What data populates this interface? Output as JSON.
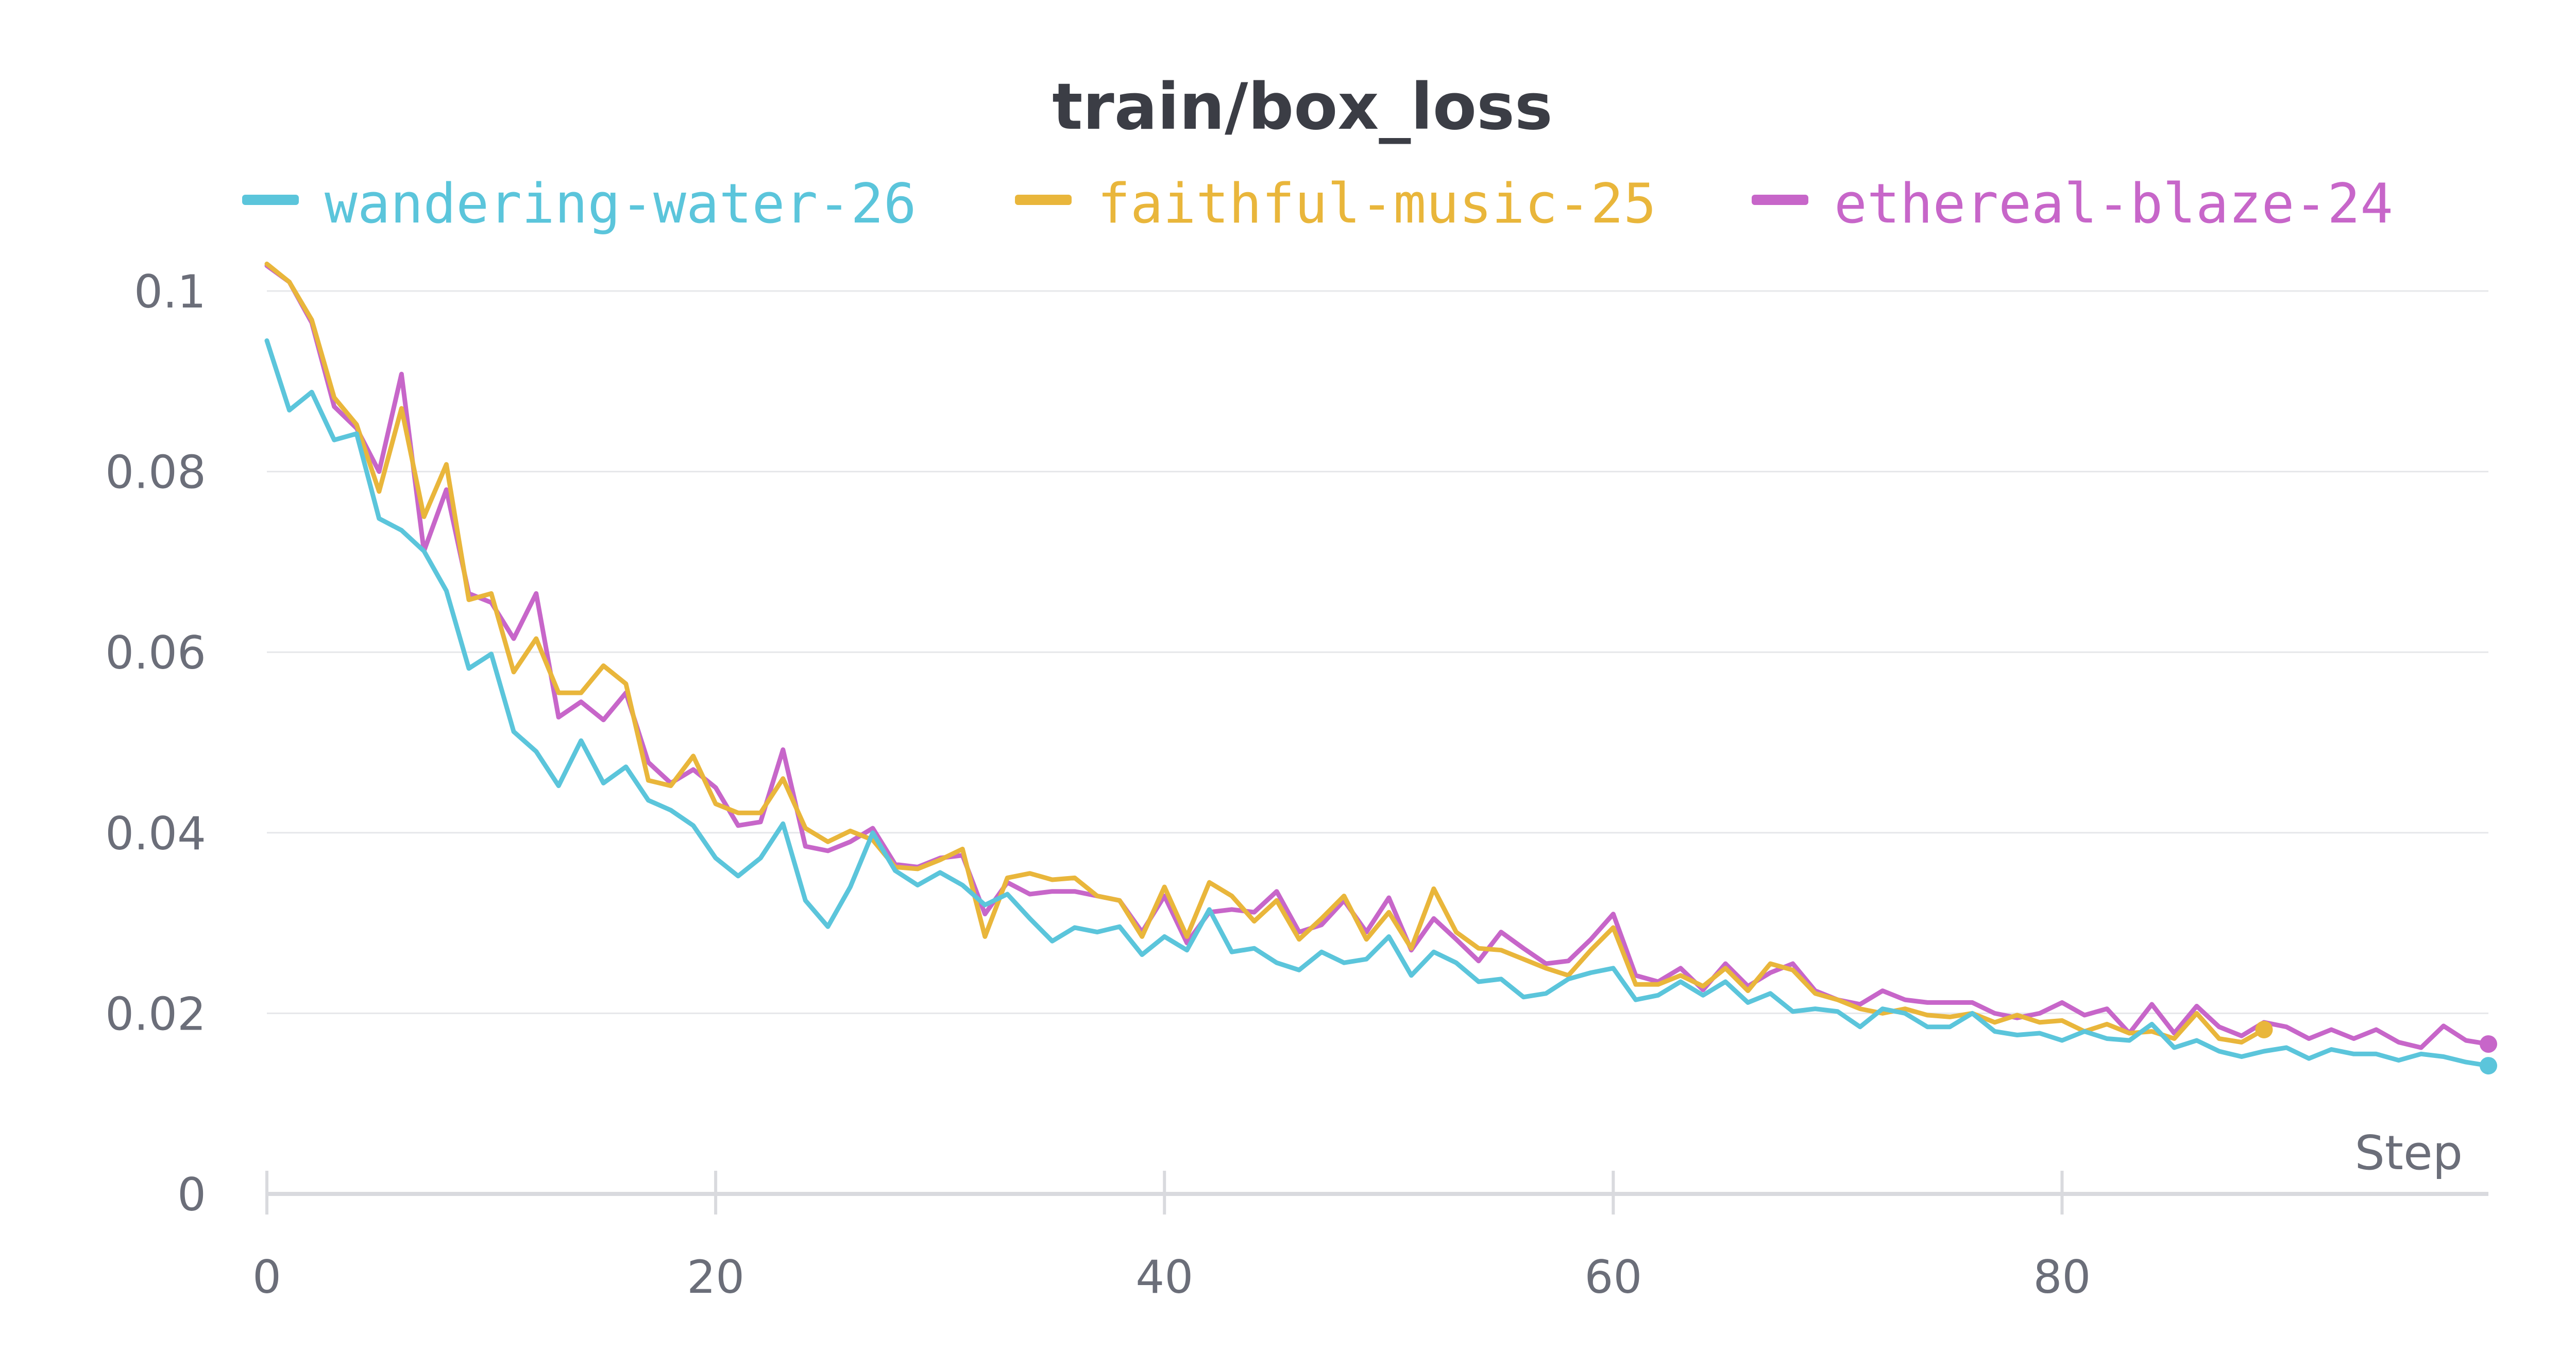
{
  "chart_data": {
    "type": "line",
    "title": "train/box_loss",
    "xlabel": "Step",
    "ylabel": "",
    "xlim": [
      0,
      99
    ],
    "ylim": [
      0,
      0.1
    ],
    "xticks": [
      0,
      20,
      40,
      60,
      80
    ],
    "yticks": [
      0,
      0.02,
      0.04,
      0.06,
      0.08,
      0.1
    ],
    "xtick_labels": [
      "0",
      "20",
      "40",
      "60",
      "80"
    ],
    "ytick_labels": [
      "0",
      "0.02",
      "0.04",
      "0.06",
      "0.08",
      "0.1"
    ],
    "grid": true,
    "legend_position": "top",
    "series": [
      {
        "name": "wandering-water-26",
        "color": "#5bc5db",
        "x_start": 0,
        "values": [
          0.0945,
          0.0868,
          0.0888,
          0.0835,
          0.0842,
          0.0748,
          0.0735,
          0.0712,
          0.0668,
          0.0582,
          0.0598,
          0.0512,
          0.049,
          0.0452,
          0.0502,
          0.0455,
          0.0473,
          0.0436,
          0.0425,
          0.0408,
          0.0372,
          0.0352,
          0.0372,
          0.041,
          0.0325,
          0.0296,
          0.034,
          0.04,
          0.0358,
          0.0342,
          0.0356,
          0.0342,
          0.032,
          0.0332,
          0.0305,
          0.028,
          0.0295,
          0.029,
          0.0296,
          0.0265,
          0.0285,
          0.027,
          0.0315,
          0.0268,
          0.0272,
          0.0256,
          0.0248,
          0.0268,
          0.0256,
          0.026,
          0.0285,
          0.0242,
          0.0268,
          0.0256,
          0.0235,
          0.0238,
          0.0218,
          0.0222,
          0.0238,
          0.0245,
          0.025,
          0.0215,
          0.022,
          0.0235,
          0.022,
          0.0235,
          0.0212,
          0.0222,
          0.0202,
          0.0205,
          0.0202,
          0.0185,
          0.0205,
          0.02,
          0.0185,
          0.0185,
          0.02,
          0.018,
          0.0176,
          0.0178,
          0.017,
          0.018,
          0.0172,
          0.017,
          0.0188,
          0.0162,
          0.017,
          0.0158,
          0.0152,
          0.0158,
          0.0162,
          0.015,
          0.016,
          0.0155,
          0.0155,
          0.0148,
          0.0155,
          0.0152,
          0.0146,
          0.0142
        ]
      },
      {
        "name": "faithful-music-25",
        "color": "#e9b63b",
        "x_start": 0,
        "values": [
          0.103,
          0.101,
          0.0968,
          0.0882,
          0.0852,
          0.0778,
          0.087,
          0.075,
          0.0808,
          0.0658,
          0.0665,
          0.0578,
          0.0615,
          0.0555,
          0.0555,
          0.0585,
          0.0565,
          0.0458,
          0.0452,
          0.0485,
          0.0432,
          0.0422,
          0.0422,
          0.046,
          0.0405,
          0.039,
          0.0402,
          0.0392,
          0.0362,
          0.036,
          0.037,
          0.0382,
          0.0285,
          0.035,
          0.0355,
          0.0348,
          0.035,
          0.033,
          0.0325,
          0.0285,
          0.034,
          0.0285,
          0.0345,
          0.033,
          0.0302,
          0.0325,
          0.0282,
          0.0305,
          0.033,
          0.0282,
          0.0312,
          0.0272,
          0.0338,
          0.029,
          0.0272,
          0.027,
          0.026,
          0.025,
          0.0242,
          0.027,
          0.0295,
          0.0232,
          0.0232,
          0.0242,
          0.023,
          0.025,
          0.0225,
          0.0255,
          0.0248,
          0.0222,
          0.0215,
          0.0205,
          0.02,
          0.0205,
          0.0198,
          0.0196,
          0.02,
          0.019,
          0.0198,
          0.019,
          0.0192,
          0.018,
          0.0188,
          0.0178,
          0.018,
          0.0172,
          0.02,
          0.0172,
          0.0168,
          0.0182
        ]
      },
      {
        "name": "ethereal-blaze-24",
        "color": "#c766c9",
        "x_start": 0,
        "values": [
          0.1028,
          0.101,
          0.0965,
          0.0872,
          0.0848,
          0.08,
          0.0908,
          0.0712,
          0.078,
          0.0665,
          0.0655,
          0.0615,
          0.0665,
          0.0528,
          0.0545,
          0.0525,
          0.0555,
          0.0478,
          0.0455,
          0.047,
          0.045,
          0.0408,
          0.0412,
          0.0492,
          0.0385,
          0.038,
          0.039,
          0.0405,
          0.0365,
          0.0362,
          0.0372,
          0.0375,
          0.031,
          0.0345,
          0.0332,
          0.0335,
          0.0335,
          0.033,
          0.0325,
          0.029,
          0.033,
          0.0278,
          0.0312,
          0.0315,
          0.0312,
          0.0335,
          0.029,
          0.0298,
          0.0325,
          0.029,
          0.0328,
          0.027,
          0.0305,
          0.0282,
          0.0258,
          0.029,
          0.0272,
          0.0255,
          0.0258,
          0.0282,
          0.031,
          0.0242,
          0.0235,
          0.025,
          0.0226,
          0.0255,
          0.023,
          0.0245,
          0.0255,
          0.0225,
          0.0215,
          0.021,
          0.0225,
          0.0215,
          0.0212,
          0.0212,
          0.0212,
          0.02,
          0.0195,
          0.02,
          0.0212,
          0.0198,
          0.0205,
          0.0178,
          0.021,
          0.0178,
          0.0208,
          0.0185,
          0.0175,
          0.019,
          0.0185,
          0.0172,
          0.0182,
          0.0172,
          0.0182,
          0.0168,
          0.0162,
          0.0186,
          0.017,
          0.0166
        ]
      }
    ]
  }
}
